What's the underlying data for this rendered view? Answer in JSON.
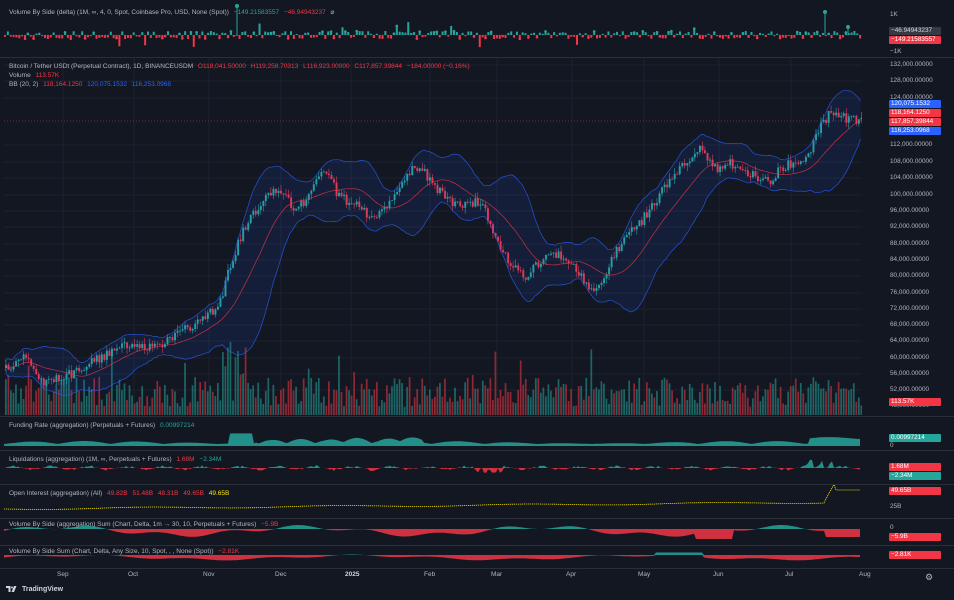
{
  "brand": "TradingView",
  "colors": {
    "up": "#26a69a",
    "down": "#f23645",
    "bb_band": "#2962ff",
    "bb_basis": "#f23645",
    "oi": "#f7e600",
    "background": "#131722",
    "grid": "#1e222d"
  },
  "pane_vbs": {
    "title": "Volume By Side (delta) (1M, ∞, 4, 0, Spot, Coinbase Pro, USD, None (Spot))",
    "v1": "−149.21583557",
    "v2": "−46.94943237",
    "eye": "⌀",
    "axis_top": "1K",
    "axis_bottom": "−1K",
    "v1_tag": "−46.94943237",
    "v2_tag": "−149.21583557"
  },
  "main": {
    "symbol": "Bitcoin / Tether USDt (Perpetual Contract), 1D, BINANCEUSDM",
    "open": "O118,041.50000",
    "high": "H119,258.70313",
    "low": "L116,923.00000",
    "close": "C117,857.39844",
    "change": "−184.00000 (−0.16%)",
    "volume_label": "Volume",
    "volume_value": "113.57K",
    "bb_label": "BB (20, 2)",
    "bb_basis": "118,164.1250",
    "bb_upper": "120,075.1532",
    "bb_lower": "116,253.0968",
    "tag_upper": "120,075.1532",
    "tag_basis": "118,164.1250",
    "tag_last": "117,857.39844",
    "tag_lower": "116,253.0968",
    "tag_volume": "113.57K",
    "price_axis": [
      "132,000.00000",
      "128,000.00000",
      "124,000.00000",
      "112,000.00000",
      "108,000.00000",
      "104,000.00000",
      "100,000.00000",
      "96,000.00000",
      "92,000.00000",
      "88,000.00000",
      "84,000.00000",
      "80,000.00000",
      "76,000.00000",
      "72,000.00000",
      "68,000.00000",
      "64,000.00000",
      "60,000.00000",
      "56,000.00000",
      "52,000.00000",
      "48,000.00000"
    ]
  },
  "pane_funding": {
    "title": "Funding Rate (aggregation) (Perpetuals + Futures)",
    "value": "0.00997214",
    "tag": "0.00997214",
    "zero": "0"
  },
  "pane_liq": {
    "title": "Liquidations (aggregation) (1M, ∞, Perpetuals + Futures)",
    "v1": "1.68M",
    "v2": "−2.34M",
    "tag1": "1.68M",
    "tag2": "−2.34M"
  },
  "pane_oi": {
    "title": "Open Interest (aggregation) (All)",
    "o": "49.82B",
    "h": "51.48B",
    "l": "48.31B",
    "c": "49.65B",
    "last": "49.65B",
    "tag": "49.65B",
    "axis": "25B"
  },
  "pane_vbs2": {
    "title": "Volume By Side (aggregation) Sum (Chart, Delta, 1m → 30, 10, Perpetuals + Futures)",
    "value": "−5.9B",
    "zero": "0",
    "tag": "−5.9B"
  },
  "pane_vbs3": {
    "title": "Volume By Side Sum (Chart, Delta, Any Size, 10, Spot, , , None (Spot))",
    "value": "−2.81K",
    "tag": "−2.81K"
  },
  "time_axis": [
    {
      "label": "Sep",
      "bold": false
    },
    {
      "label": "Oct",
      "bold": false
    },
    {
      "label": "Nov",
      "bold": false
    },
    {
      "label": "Dec",
      "bold": false
    },
    {
      "label": "2025",
      "bold": true
    },
    {
      "label": "Feb",
      "bold": false
    },
    {
      "label": "Mar",
      "bold": false
    },
    {
      "label": "Apr",
      "bold": false
    },
    {
      "label": "May",
      "bold": false
    },
    {
      "label": "Jun",
      "bold": false
    },
    {
      "label": "Jul",
      "bold": false
    },
    {
      "label": "Aug",
      "bold": false
    }
  ]
}
